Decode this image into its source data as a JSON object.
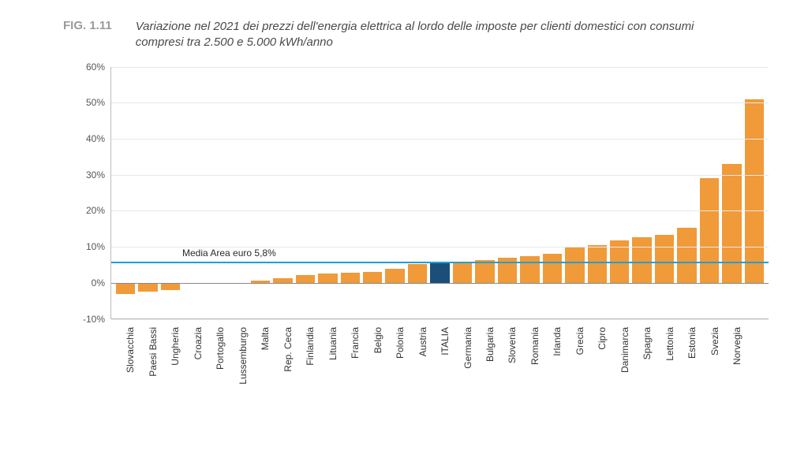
{
  "figure": {
    "label": "FIG. 1.11",
    "title": "Variazione nel 2021 dei prezzi dell'energia elettrica al lordo delle imposte per clienti domestici con consumi compresi tra 2.500 e 5.000 kWh/anno"
  },
  "chart": {
    "type": "bar",
    "ylim": [
      -10,
      60
    ],
    "ytick_step": 10,
    "ytick_suffix": "%",
    "background_color": "#ffffff",
    "grid_color": "#e8e8e8",
    "axis_color": "#bbbbbb",
    "bar_color_default": "#f09a39",
    "bar_color_highlight": "#1b4f7a",
    "reference_line": {
      "value": 5.8,
      "label": "Media Area euro 5,8%",
      "color": "#1ea0d6",
      "label_fontsize": 12
    },
    "label_fontsize": 12,
    "series": [
      {
        "category": "Slovacchia",
        "value": -3.2,
        "highlight": false
      },
      {
        "category": "Paesi Bassi",
        "value": -2.5,
        "highlight": false
      },
      {
        "category": "Ungheria",
        "value": -2.0,
        "highlight": false
      },
      {
        "category": "Croazia",
        "value": -0.3,
        "highlight": false
      },
      {
        "category": "Portogallo",
        "value": -0.2,
        "highlight": false
      },
      {
        "category": "Lussemburgo",
        "value": 0.0,
        "highlight": false
      },
      {
        "category": "Malta",
        "value": 0.6,
        "highlight": false
      },
      {
        "category": "Rep. Ceca",
        "value": 1.3,
        "highlight": false
      },
      {
        "category": "Finlandia",
        "value": 2.2,
        "highlight": false
      },
      {
        "category": "Lituania",
        "value": 2.6,
        "highlight": false
      },
      {
        "category": "Francia",
        "value": 2.9,
        "highlight": false
      },
      {
        "category": "Belgio",
        "value": 3.1,
        "highlight": false
      },
      {
        "category": "Polonia",
        "value": 3.8,
        "highlight": false
      },
      {
        "category": "Austria",
        "value": 5.2,
        "highlight": false
      },
      {
        "category": "ITALIA",
        "value": 5.6,
        "highlight": true
      },
      {
        "category": "Germania",
        "value": 5.8,
        "highlight": false
      },
      {
        "category": "Bulgaria",
        "value": 6.4,
        "highlight": false
      },
      {
        "category": "Slovenia",
        "value": 7.0,
        "highlight": false
      },
      {
        "category": "Romania",
        "value": 7.5,
        "highlight": false
      },
      {
        "category": "Irlanda",
        "value": 8.1,
        "highlight": false
      },
      {
        "category": "Grecia",
        "value": 10.0,
        "highlight": false
      },
      {
        "category": "Cipro",
        "value": 10.4,
        "highlight": false
      },
      {
        "category": "Danimarca",
        "value": 11.8,
        "highlight": false
      },
      {
        "category": "Spagna",
        "value": 12.6,
        "highlight": false
      },
      {
        "category": "Lettonia",
        "value": 13.4,
        "highlight": false
      },
      {
        "category": "Estonia",
        "value": 15.3,
        "highlight": false
      },
      {
        "category": "Svezia",
        "value": 29.0,
        "highlight": false
      },
      {
        "category": "Norvegia",
        "value": 33.0,
        "highlight": false
      },
      {
        "category": "",
        "value": 51.0,
        "highlight": false
      }
    ]
  }
}
